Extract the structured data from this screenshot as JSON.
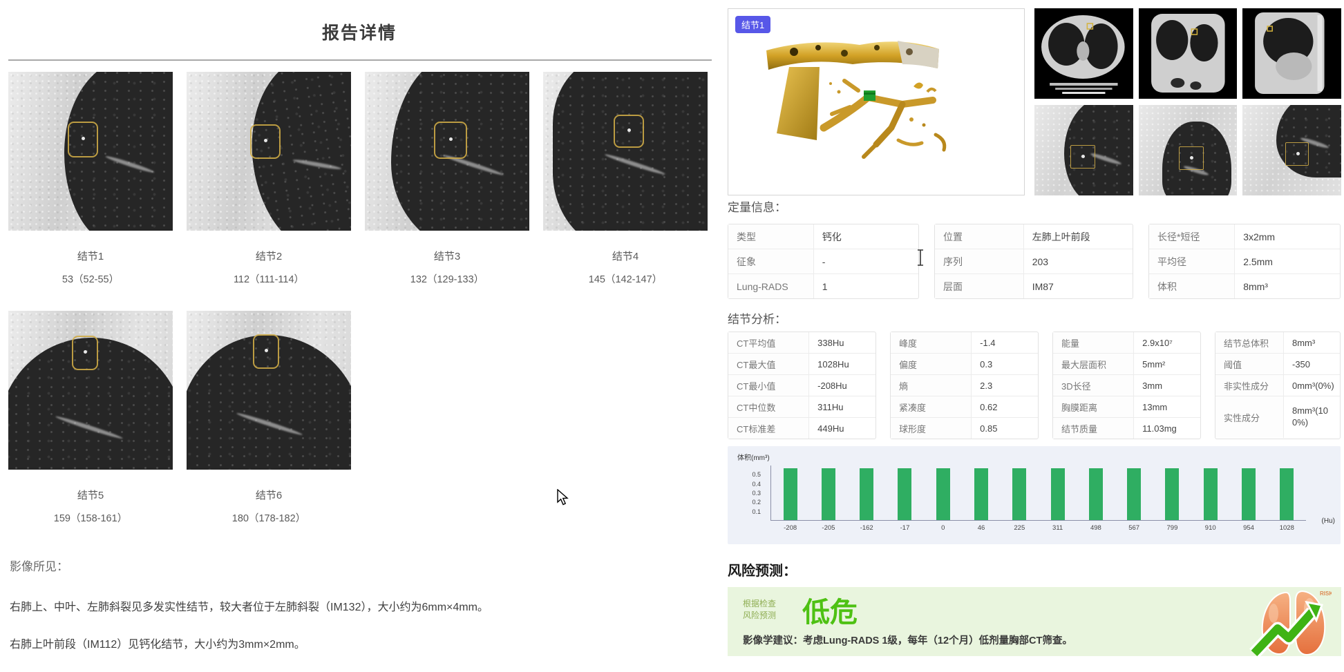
{
  "report": {
    "title": "报告详情",
    "nodules": [
      {
        "name": "结节1",
        "slices": "53（52-55）"
      },
      {
        "name": "结节2",
        "slices": "112（111-114）"
      },
      {
        "name": "结节3",
        "slices": "132（129-133）"
      },
      {
        "name": "结节4",
        "slices": "145（142-147）"
      },
      {
        "name": "结节5",
        "slices": "159（158-161）"
      },
      {
        "name": "结节6",
        "slices": "180（178-182）"
      }
    ],
    "findings_heading": "影像所见：",
    "findings": [
      "右肺上、中叶、左肺斜裂见多发实性结节，较大者位于左肺斜裂（IM132），大小约为6mm×4mm。",
      "右肺上叶前段（IM112）见钙化结节，大小约为3mm×2mm。"
    ]
  },
  "detail": {
    "viewer_badge": "结节1",
    "quantitative_heading": "定量信息：",
    "quantitative": {
      "t1": [
        {
          "label": "类型",
          "value": "钙化"
        },
        {
          "label": "征象",
          "value": "-"
        },
        {
          "label": "Lung-RADS",
          "value": "1"
        }
      ],
      "t2": [
        {
          "label": "位置",
          "value": "左肺上叶前段"
        },
        {
          "label": "序列",
          "value": "203"
        },
        {
          "label": "层面",
          "value": "IM87"
        }
      ],
      "t3": [
        {
          "label": "长径*短径",
          "value": "3x2mm"
        },
        {
          "label": "平均径",
          "value": "2.5mm"
        },
        {
          "label": "体积",
          "value": "8mm³"
        }
      ]
    },
    "analysis_heading": "结节分析：",
    "analysis": {
      "t1": [
        {
          "label": "CT平均值",
          "value": "338Hu"
        },
        {
          "label": "CT最大值",
          "value": "1028Hu"
        },
        {
          "label": "CT最小值",
          "value": "-208Hu"
        },
        {
          "label": "CT中位数",
          "value": "311Hu"
        },
        {
          "label": "CT标准差",
          "value": "449Hu"
        }
      ],
      "t2": [
        {
          "label": "峰度",
          "value": "-1.4"
        },
        {
          "label": "偏度",
          "value": "0.3"
        },
        {
          "label": "熵",
          "value": "2.3"
        },
        {
          "label": "紧凑度",
          "value": "0.62"
        },
        {
          "label": "球形度",
          "value": "0.85"
        }
      ],
      "t3": [
        {
          "label": "能量",
          "value": "2.9x10⁷"
        },
        {
          "label": "最大层面积",
          "value": "5mm²"
        },
        {
          "label": "3D长径",
          "value": "3mm"
        },
        {
          "label": "胸膜距离",
          "value": "13mm"
        },
        {
          "label": "结节质量",
          "value": "11.03mg"
        }
      ],
      "t4": [
        {
          "label": "结节总体积",
          "value": "8mm³"
        },
        {
          "label": "阈值",
          "value": "-350"
        },
        {
          "label": "非实性成分",
          "value": "0mm³(0%)"
        },
        {
          "label": "实性成分",
          "value": "8mm³(100%)"
        }
      ]
    },
    "risk": {
      "heading": "风险预测：",
      "pre_line1": "根据检查",
      "pre_line2": "风险预测",
      "level": "低危",
      "suggestion": "影像学建议：考虑Lung-RADS 1级，每年（12个月）低剂量胸部CT筛查。",
      "icon_label": "RISK"
    },
    "colors": {
      "badge_blue": "#5757e8",
      "bar_green": "#2fae62",
      "risk_green": "#4ec113",
      "panel_green": "#e9f5de",
      "roi_yellow": "#cdaa46"
    }
  },
  "chart_data": {
    "type": "bar",
    "title": "",
    "ylabel": "体积(mm³)",
    "x_unit": "(Hu)",
    "categories": [
      "-208",
      "-205",
      "-162",
      "-17",
      "0",
      "46",
      "225",
      "311",
      "498",
      "567",
      "799",
      "910",
      "954",
      "1028"
    ],
    "values": [
      0.57,
      0.57,
      0.57,
      0.57,
      0.57,
      0.57,
      0.57,
      0.57,
      0.57,
      0.57,
      0.57,
      0.57,
      0.57,
      0.57
    ],
    "yticks": [
      "0.1",
      "0.2",
      "0.3",
      "0.4",
      "0.5"
    ],
    "ylim": [
      0,
      0.6
    ],
    "grid": false,
    "legend": null,
    "bar_color": "#2fae62",
    "plot_bg": "#eef1f8"
  }
}
